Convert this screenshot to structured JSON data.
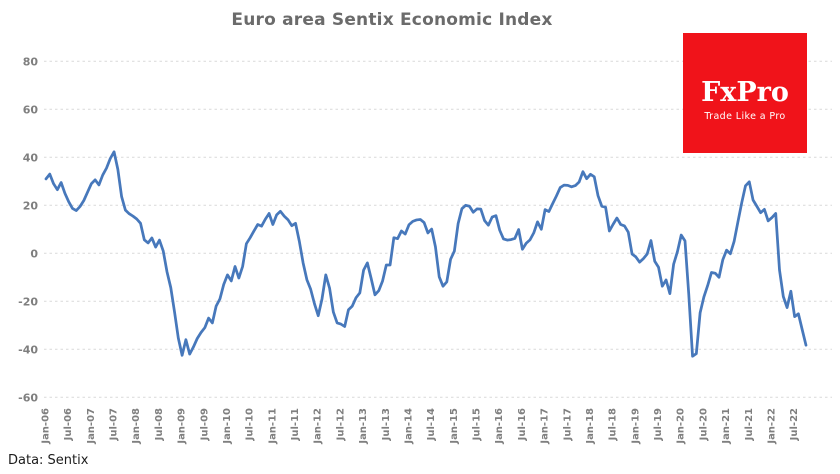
{
  "title": "Euro area Sentix Economic Index",
  "source_note": "Data: Sentix",
  "logo": {
    "brand": "FxPro",
    "tagline": "Trade Like a Pro",
    "bg_color": "#f0131a",
    "text_color": "#ffffff"
  },
  "colors": {
    "line": "#4778bb",
    "grid": "#d9d9d9",
    "axis_text": "#7f7f7f",
    "title_text": "#6b6b6b"
  },
  "chart_data": {
    "type": "line",
    "title": "Euro area Sentix Economic Index",
    "xlabel": "",
    "ylabel": "",
    "legend": "none",
    "grid": "horizontal-dashed",
    "ylim": [
      -60,
      80
    ],
    "y_ticks": [
      80,
      60,
      40,
      20,
      0,
      -20,
      -40,
      -60
    ],
    "x_tick_labels": [
      "Jan-06",
      "Jul-06",
      "Jan-07",
      "Jul-07",
      "Jan-08",
      "Jul-08",
      "Jan-09",
      "Jul-09",
      "Jan-10",
      "Jul-10",
      "Jan-11",
      "Jul-11",
      "Jan-12",
      "Jul-12",
      "Jan-13",
      "Jul-13",
      "Jan-14",
      "Jul-14",
      "Jan-15",
      "Jul-15",
      "Jan-16",
      "Jul-16",
      "Jan-17",
      "Jul-17",
      "Jan-18",
      "Jul-18",
      "Jan-19",
      "Jul-19",
      "Jan-20",
      "Jul-20",
      "Jan-21",
      "Jul-21",
      "Jan-22",
      "Jul-22"
    ],
    "frequency": "monthly",
    "start_month": "Jan-06",
    "end_month": "Oct-22",
    "series": [
      {
        "name": "Sentix Economic Index",
        "values": [
          31,
          33,
          29,
          26.5,
          29.5,
          25,
          21.5,
          18.7,
          17.8,
          19.5,
          22,
          25.5,
          29,
          30.6,
          28.5,
          32.6,
          35.5,
          39.5,
          42.3,
          35,
          23.6,
          18,
          16.5,
          15.5,
          14.3,
          12.5,
          5.6,
          4.3,
          6.4,
          2.6,
          5.5,
          1.0,
          -7.7,
          -14.3,
          -24.5,
          -35.4,
          -42.5,
          -36,
          -42,
          -39,
          -35.5,
          -33,
          -31,
          -27,
          -29,
          -22,
          -19,
          -13,
          -9,
          -11.5,
          -5.5,
          -10.3,
          -5.5,
          4,
          6.5,
          9.3,
          12,
          11.3,
          14.2,
          16.6,
          12,
          16,
          17.5,
          15.5,
          14,
          11.5,
          12.5,
          5,
          -4,
          -11,
          -15,
          -21,
          -26,
          -19,
          -9,
          -14.5,
          -24.5,
          -29,
          -29.5,
          -30.5,
          -23.5,
          -22,
          -18.5,
          -16.5,
          -7,
          -4,
          -10.5,
          -17.3,
          -15.6,
          -11.6,
          -4.9,
          -4.9,
          6.5,
          6.1,
          9.3,
          8.0,
          11.9,
          13.3,
          13.9,
          14.1,
          12.8,
          8.5,
          10.1,
          2.7,
          -9.8,
          -13.7,
          -11.9,
          -2.5,
          0.9,
          12.4,
          18.6,
          20.0,
          19.6,
          17.1,
          18.5,
          18.4,
          13.6,
          11.7,
          15.1,
          15.7,
          9.6,
          6.0,
          5.5,
          5.7,
          6.2,
          9.9,
          1.7,
          4.2,
          5.6,
          8.5,
          13.1,
          10.0,
          18.2,
          17.4,
          20.7,
          23.9,
          27.4,
          28.4,
          28.3,
          27.7,
          28.2,
          29.7,
          34.0,
          31.1,
          32.9,
          31.9,
          24.0,
          19.6,
          19.2,
          9.3,
          12.1,
          14.7,
          12.0,
          11.4,
          8.8,
          -0.3,
          -1.5,
          -3.7,
          -2.2,
          -0.3,
          5.3,
          -3.3,
          -5.8,
          -13.7,
          -11.1,
          -16.8,
          -4.5,
          0.7,
          7.6,
          5.2,
          -17.1,
          -42.9,
          -41.8,
          -24.8,
          -18.2,
          -13.4,
          -8.0,
          -8.3,
          -10.0,
          -2.7,
          1.3,
          -0.2,
          5.0,
          13.1,
          21.0,
          28.1,
          29.8,
          22.2,
          19.6,
          16.9,
          18.3,
          13.5,
          14.9,
          16.6,
          -7.0,
          -18.0,
          -22.6,
          -15.8,
          -26.4,
          -25.2,
          -31.8,
          -38.3
        ]
      }
    ]
  }
}
